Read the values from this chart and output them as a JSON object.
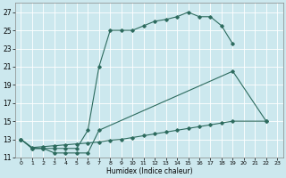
{
  "xlabel": "Humidex (Indice chaleur)",
  "bg_color": "#cce8ee",
  "line_color": "#2d6b5e",
  "grid_color": "#ffffff",
  "xlim": [
    -0.5,
    23.5
  ],
  "ylim": [
    11,
    28
  ],
  "line1": {
    "x": [
      0,
      1,
      2,
      3,
      4,
      5,
      6,
      7,
      8,
      9,
      10,
      11,
      12,
      13,
      14,
      15,
      16,
      17,
      18,
      19
    ],
    "y": [
      13,
      12,
      12,
      12,
      12,
      12,
      14,
      21,
      25,
      25,
      25,
      25.5,
      26,
      26.2,
      26.5,
      27,
      26.5,
      26.5,
      25.5,
      23.5
    ]
  },
  "line2": {
    "x": [
      0,
      1,
      2,
      3,
      4,
      5,
      6,
      7,
      19,
      22
    ],
    "y": [
      13,
      12,
      12,
      11.5,
      11.5,
      11.5,
      11.5,
      14,
      20.5,
      15
    ]
  },
  "line3": {
    "x": [
      0,
      1,
      2,
      3,
      4,
      5,
      6,
      7,
      8,
      9,
      10,
      11,
      12,
      13,
      14,
      15,
      16,
      17,
      18,
      19,
      22
    ],
    "y": [
      13,
      12.1,
      12.2,
      12.3,
      12.4,
      12.5,
      12.6,
      12.7,
      12.9,
      13.0,
      13.2,
      13.4,
      13.6,
      13.8,
      14.0,
      14.2,
      14.4,
      14.6,
      14.8,
      15.0,
      15.0
    ]
  },
  "yticks": [
    11,
    13,
    15,
    17,
    19,
    21,
    23,
    25,
    27
  ],
  "xticks": [
    0,
    1,
    2,
    3,
    4,
    5,
    6,
    7,
    8,
    9,
    10,
    11,
    12,
    13,
    14,
    15,
    16,
    17,
    18,
    19,
    20,
    21,
    22,
    23
  ]
}
